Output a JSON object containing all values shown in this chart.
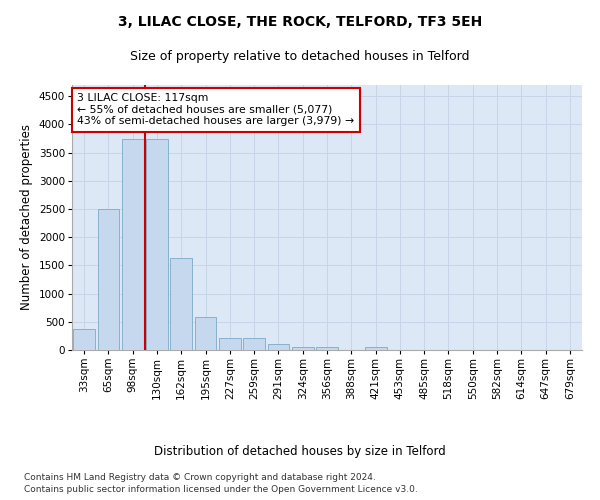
{
  "title": "3, LILAC CLOSE, THE ROCK, TELFORD, TF3 5EH",
  "subtitle": "Size of property relative to detached houses in Telford",
  "xlabel": "Distribution of detached houses by size in Telford",
  "ylabel": "Number of detached properties",
  "categories": [
    "33sqm",
    "65sqm",
    "98sqm",
    "130sqm",
    "162sqm",
    "195sqm",
    "227sqm",
    "259sqm",
    "291sqm",
    "324sqm",
    "356sqm",
    "388sqm",
    "421sqm",
    "453sqm",
    "485sqm",
    "518sqm",
    "550sqm",
    "582sqm",
    "614sqm",
    "647sqm",
    "679sqm"
  ],
  "values": [
    380,
    2500,
    3750,
    3750,
    1640,
    590,
    215,
    215,
    100,
    60,
    50,
    0,
    55,
    0,
    0,
    0,
    0,
    0,
    0,
    0,
    0
  ],
  "bar_color": "#c5d8ed",
  "bar_edge_color": "#7aaac8",
  "marker_line_color": "#cc0000",
  "annotation_line1": "3 LILAC CLOSE: 117sqm",
  "annotation_line2": "← 55% of detached houses are smaller (5,077)",
  "annotation_line3": "43% of semi-detached houses are larger (3,979) →",
  "annotation_box_facecolor": "white",
  "annotation_box_edgecolor": "#cc0000",
  "ylim": [
    0,
    4700
  ],
  "yticks": [
    0,
    500,
    1000,
    1500,
    2000,
    2500,
    3000,
    3500,
    4000,
    4500
  ],
  "grid_color": "#c8d4e8",
  "background_color": "#dce8f5",
  "footer_line1": "Contains HM Land Registry data © Crown copyright and database right 2024.",
  "footer_line2": "Contains public sector information licensed under the Open Government Licence v3.0.",
  "title_fontsize": 10,
  "subtitle_fontsize": 9,
  "axis_label_fontsize": 8.5,
  "tick_fontsize": 7.5,
  "footer_fontsize": 6.5
}
